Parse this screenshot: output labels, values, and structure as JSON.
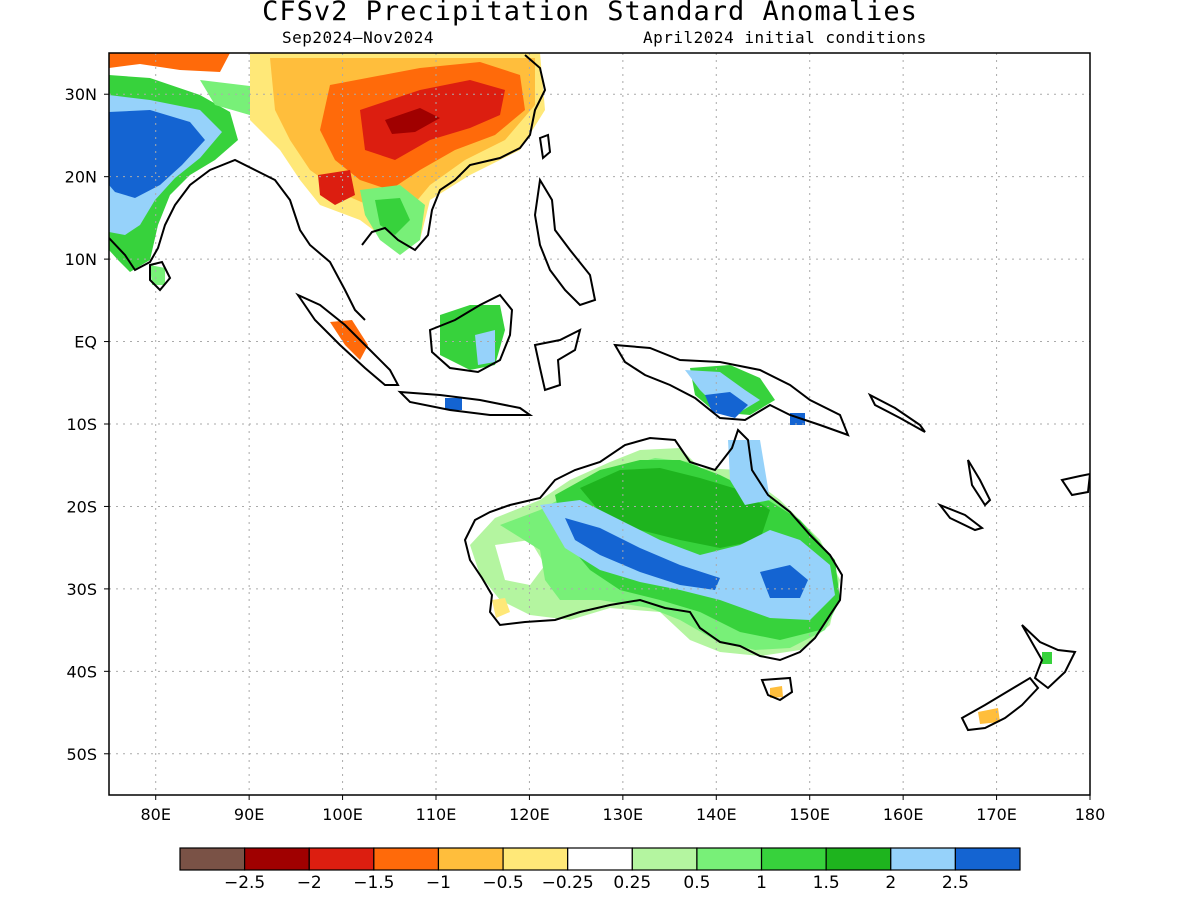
{
  "header": {
    "title": "CFSv2 Precipitation Standard Anomalies",
    "period": "Sep2024–Nov2024",
    "initial_conditions": "April2024 initial conditions"
  },
  "map": {
    "lon_range": [
      75,
      180
    ],
    "lat_range": [
      -55,
      35
    ],
    "lon_ticks": [
      {
        "lon": 80,
        "label": "80E"
      },
      {
        "lon": 90,
        "label": "90E"
      },
      {
        "lon": 100,
        "label": "100E"
      },
      {
        "lon": 110,
        "label": "110E"
      },
      {
        "lon": 120,
        "label": "120E"
      },
      {
        "lon": 130,
        "label": "130E"
      },
      {
        "lon": 140,
        "label": "140E"
      },
      {
        "lon": 150,
        "label": "150E"
      },
      {
        "lon": 160,
        "label": "160E"
      },
      {
        "lon": 170,
        "label": "170E"
      },
      {
        "lon": 180,
        "label": "180"
      }
    ],
    "lat_ticks": [
      {
        "lat": 30,
        "label": "30N"
      },
      {
        "lat": 20,
        "label": "20N"
      },
      {
        "lat": 10,
        "label": "10N"
      },
      {
        "lat": 0,
        "label": "EQ"
      },
      {
        "lat": -10,
        "label": "10S"
      },
      {
        "lat": -20,
        "label": "20S"
      },
      {
        "lat": -30,
        "label": "30S"
      },
      {
        "lat": -40,
        "label": "40S"
      },
      {
        "lat": -50,
        "label": "50S"
      }
    ],
    "grid": true
  },
  "colorbar": {
    "colors": [
      "#7a5246",
      "#a00000",
      "#dc1e10",
      "#ff6a0a",
      "#ffbe3c",
      "#ffe878",
      "#ffffff",
      "#b4f5a0",
      "#78f078",
      "#37d23c",
      "#1eb41e",
      "#96d2fa",
      "#1464d2"
    ],
    "labels": [
      "−2.5",
      "−2",
      "−1.5",
      "−1",
      "−0.5",
      "−0.25",
      "0.25",
      "0.5",
      "1",
      "1.5",
      "2",
      "2.5"
    ]
  }
}
